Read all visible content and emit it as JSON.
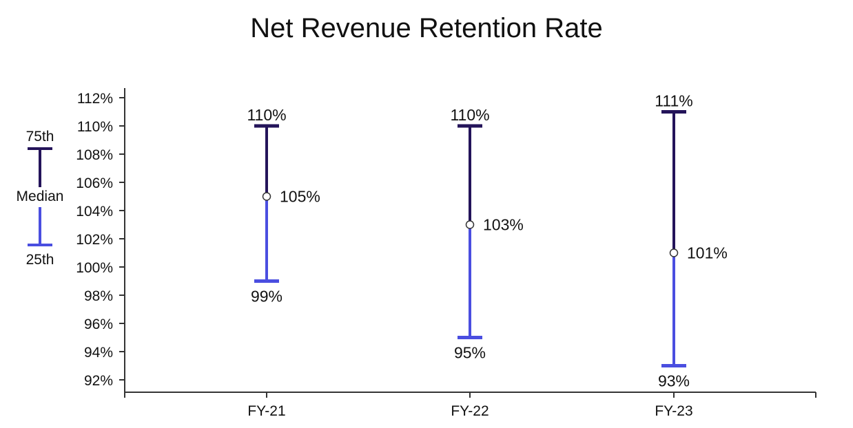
{
  "colors": {
    "upper": "#24145a",
    "lower": "#4a4ee0",
    "axis": "#333333",
    "text": "#111111",
    "marker_fill": "#ffffff"
  },
  "legend": {
    "top_label": "75th",
    "middle_label": "Median",
    "bottom_label": "25th"
  },
  "chart_data": {
    "type": "range",
    "title": "Net Revenue Retention Rate",
    "xlabel": "",
    "ylabel": "",
    "categories": [
      "FY-21",
      "FY-22",
      "FY-23"
    ],
    "p75": [
      110,
      110,
      111
    ],
    "median": [
      105,
      103,
      101
    ],
    "p25": [
      99,
      95,
      93
    ],
    "ylim": [
      92,
      112
    ],
    "yticks": [
      92,
      94,
      96,
      98,
      100,
      102,
      104,
      106,
      108,
      110,
      112
    ],
    "ytick_labels": [
      "92%",
      "94%",
      "96%",
      "98%",
      "100%",
      "102%",
      "104%",
      "106%",
      "108%",
      "110%",
      "112%"
    ],
    "p75_labels": [
      "110%",
      "110%",
      "111%"
    ],
    "median_labels": [
      "105%",
      "103%",
      "101%"
    ],
    "p25_labels": [
      "99%",
      "95%",
      "93%"
    ],
    "grid": false,
    "legend_position": "left"
  }
}
